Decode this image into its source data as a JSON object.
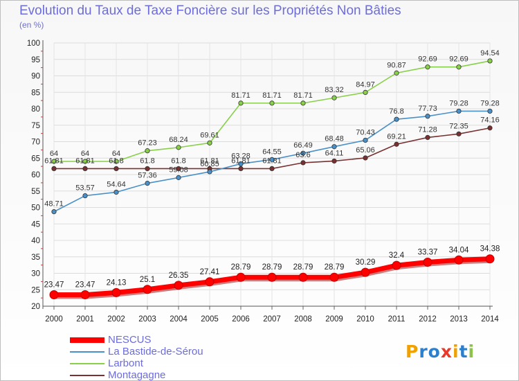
{
  "title": "Evolution du Taux de Taxe Foncière sur les Propriétés Non Bâties",
  "unit_label": "(en %)",
  "logo": {
    "letters": [
      "P",
      "r",
      "o",
      "x",
      "i",
      "t",
      "i"
    ],
    "colors": [
      "#f0a000",
      "#2b7fcf",
      "#2b7fcf",
      "#e8392a",
      "#f0a000",
      "#2b7fcf",
      "#8bc34a"
    ]
  },
  "chart_data": {
    "type": "line",
    "title": "Evolution du Taux de Taxe Foncière sur les Propriétés Non Bâties",
    "ylabel": "(en %)",
    "xlabel": "",
    "ylim": [
      20,
      100
    ],
    "yticks": [
      20,
      25,
      30,
      35,
      40,
      45,
      50,
      55,
      60,
      65,
      70,
      75,
      80,
      85,
      90,
      95,
      100
    ],
    "grid": true,
    "categories": [
      "2000",
      "2001",
      "2002",
      "2003",
      "2004",
      "2005",
      "2006",
      "2007",
      "2008",
      "2009",
      "2010",
      "2011",
      "2012",
      "2013",
      "2014"
    ],
    "series": [
      {
        "name": "NESCUS",
        "color": "#ff0000",
        "values": [
          23.47,
          23.47,
          24.13,
          25.1,
          26.35,
          27.41,
          28.79,
          28.79,
          28.79,
          28.79,
          30.29,
          32.4,
          33.37,
          34.04,
          34.38
        ],
        "labels": [
          "23.47",
          "23.47",
          "24.13",
          "25.1",
          "26.35",
          "27.41",
          "28.79",
          "28.79",
          "28.79",
          "28.79",
          "30.29",
          "32.4",
          "33.37",
          "34.04",
          "34.38"
        ]
      },
      {
        "name": "La Bastide-de-Sérou",
        "color": "#4a90c8",
        "values": [
          48.71,
          53.57,
          54.64,
          57.36,
          59.08,
          60.85,
          63.28,
          64.55,
          66.49,
          68.48,
          70.43,
          76.8,
          77.73,
          79.28,
          79.28
        ],
        "labels": [
          "48.71",
          "53.57",
          "54.64",
          "57.36",
          "59.08",
          "60.85",
          "63.28",
          "64.55",
          "66.49",
          "68.48",
          "70.43",
          "76.8",
          "77.73",
          "79.28",
          "79.28"
        ]
      },
      {
        "name": "Larbont",
        "color": "#88d048",
        "values": [
          64,
          64,
          64,
          67.23,
          68.24,
          69.61,
          81.71,
          81.71,
          81.71,
          83.32,
          84.97,
          90.87,
          92.69,
          92.69,
          94.54
        ],
        "labels": [
          "64",
          "64",
          "64",
          "67.23",
          "68.24",
          "69.61",
          "81.71",
          "81.71",
          "81.71",
          "83.32",
          "84.97",
          "90.87",
          "92.69",
          "92.69",
          "94.54"
        ]
      },
      {
        "name": "Montagagne",
        "color": "#7a3030",
        "values": [
          61.81,
          61.81,
          61.8,
          61.8,
          61.8,
          61.81,
          61.81,
          61.81,
          63.6,
          64.11,
          65.06,
          69.21,
          71.28,
          72.35,
          74.16
        ],
        "labels": [
          "61.81",
          "61.81",
          "61.8",
          "61.8",
          "61.8",
          "61.81",
          "61.81",
          "61.81",
          "63.6",
          "64.11",
          "65.06",
          "69.21",
          "71.28",
          "72.35",
          "74.16"
        ]
      }
    ]
  }
}
